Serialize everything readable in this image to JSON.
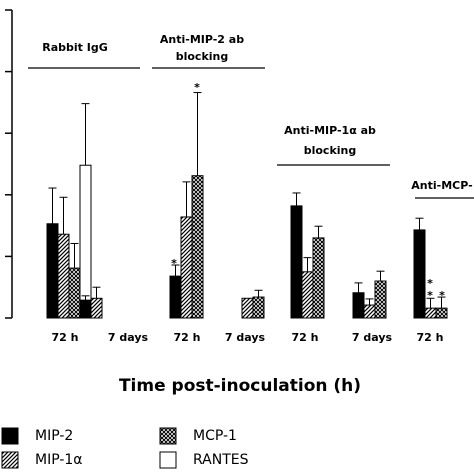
{
  "chart_data": {
    "type": "bar",
    "categories": [
      "72 h",
      "7 days",
      "72 h",
      "7 days",
      "72 h",
      "7 days",
      "72 h"
    ],
    "x_label": "Time post-inoculation (h)",
    "ylim": [
      0,
      5
    ],
    "yticks": [
      0,
      1,
      2,
      3,
      4,
      5
    ],
    "annotations": [
      "Rabbit IgG",
      "Anti-MIP-2 ab",
      "blocking",
      "Anti-MIP-1α ab",
      "blocking",
      "Anti-MCP-",
      "*",
      "*",
      "*",
      "*",
      "*"
    ],
    "series": [
      {
        "name": "MIP-2",
        "color": "#000000",
        "fill": "solid",
        "values": [
          1.53,
          0.29,
          0.68,
          null,
          1.82,
          0.41,
          1.43
        ],
        "errors": [
          0.58,
          0.07,
          0.18,
          null,
          0.21,
          0.16,
          0.19
        ]
      },
      {
        "name": "MIP-1α",
        "color": "#000000",
        "fill": "diagonal",
        "values": [
          1.36,
          0.32,
          1.64,
          0.32,
          0.75,
          0.21,
          0.16
        ],
        "errors": [
          0.6,
          0.18,
          0.57,
          null,
          0.23,
          0.1,
          0.16
        ]
      },
      {
        "name": "MCP-1",
        "color": "#000000",
        "fill": "crosshatch",
        "values": [
          0.81,
          null,
          2.31,
          0.34,
          1.3,
          0.6,
          0.16
        ],
        "errors": [
          0.4,
          null,
          1.35,
          0.11,
          0.19,
          0.16,
          0.18
        ]
      },
      {
        "name": "RANTES",
        "color": "#000000",
        "fill": "none",
        "values": [
          2.48,
          null,
          null,
          null,
          null,
          null,
          null
        ],
        "errors": [
          1.0,
          null,
          null,
          null,
          null,
          null,
          null
        ]
      }
    ]
  }
}
